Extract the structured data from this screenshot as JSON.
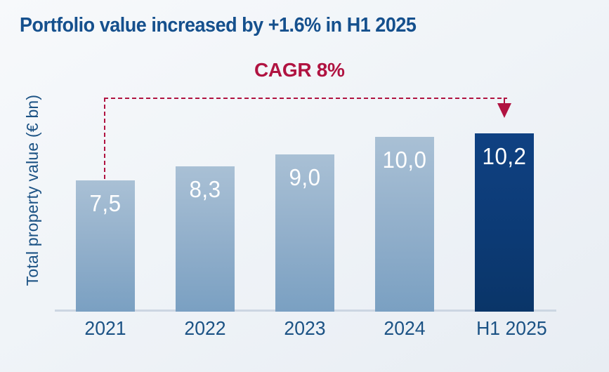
{
  "title": "Portfolio value increased by +1.6% in H1 2025",
  "annotation": {
    "label": "CAGR 8%",
    "color": "#b01341",
    "arrow_icon": "down-triangle"
  },
  "colors": {
    "title_text": "#15508d",
    "axis_text": "#1b5284",
    "bar_light": "#8fadc9",
    "bar_highlight": "#0c3a74",
    "bar_value_text": "#ffffff",
    "baseline": "#ccd6e2",
    "annotation_red": "#b01341",
    "background_top": "#f7f9fb",
    "background_bottom": "#e8edf3"
  },
  "chart_data": {
    "type": "bar",
    "title": "Portfolio value increased by +1.6% in H1 2025",
    "categories": [
      "2021",
      "2022",
      "2023",
      "2024",
      "H1 2025"
    ],
    "values": [
      7.5,
      8.3,
      9.0,
      10.0,
      10.2
    ],
    "value_labels": [
      "7,5",
      "8,3",
      "9,0",
      "10,0",
      "10,2"
    ],
    "highlight_index": 4,
    "ylabel": "Total property value (€ bn)",
    "xlabel": "",
    "ylim": [
      0,
      10.5
    ],
    "grid": false,
    "legend": false,
    "annotation": "CAGR 8%"
  }
}
